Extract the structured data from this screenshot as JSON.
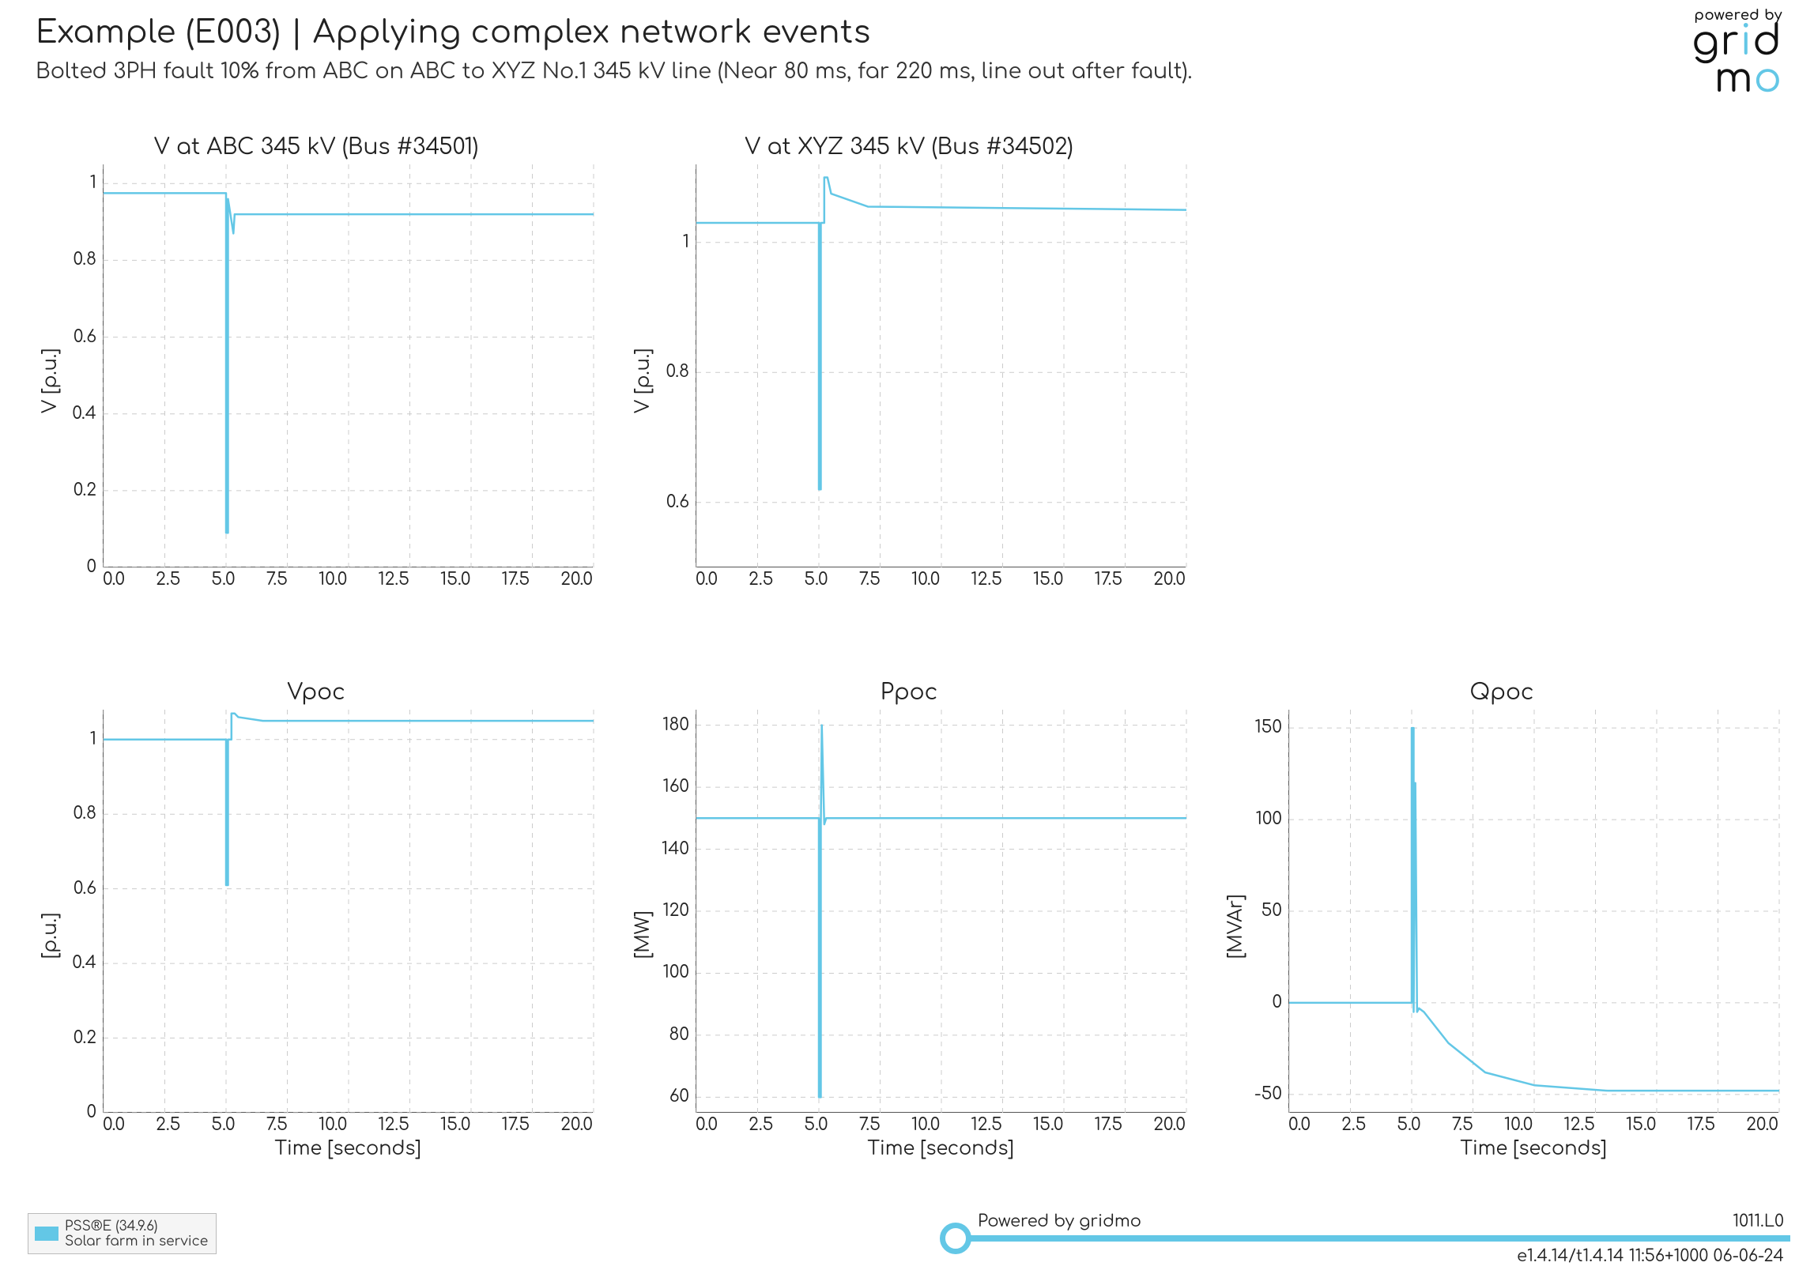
{
  "header": {
    "title": "Example (E003) | Applying complex network events",
    "subtitle": "Bolted 3PH fault 10% from ABC on ABC to XYZ No.1 345 kV line (Near 80 ms, far 220 ms, line out after fault)."
  },
  "logo": {
    "powered_by": "powered by",
    "brand_prefix": "gr",
    "brand_i": "i",
    "brand_mid": "dm",
    "brand_o": "o"
  },
  "global_style": {
    "line_color": "#63c7e6",
    "line_width": 2.5,
    "grid_color": "#cccccc",
    "grid_dash": "6,6",
    "axis_color": "#555555",
    "background_color": "#ffffff",
    "font_color": "#222222",
    "tick_fontsize": 22,
    "title_fontsize": 28,
    "label_fontsize": 24
  },
  "charts": [
    {
      "id": "v_abc",
      "title": "V at ABC 345 kV (Bus #34501)",
      "ylabel": "V [p.u.]",
      "xlabel": "",
      "xlim": [
        0,
        20
      ],
      "xticks": [
        0.0,
        2.5,
        5.0,
        7.5,
        10.0,
        12.5,
        15.0,
        17.5,
        20.0
      ],
      "ylim": [
        0.0,
        1.05
      ],
      "yticks": [
        0.0,
        0.2,
        0.4,
        0.6,
        0.8,
        1.0
      ],
      "show_xlabel": false,
      "series": [
        {
          "x": [
            0,
            4.95,
            5.0,
            5.0,
            5.08,
            5.08,
            5.3,
            5.35,
            6.0,
            20.0
          ],
          "y": [
            0.975,
            0.975,
            0.975,
            0.09,
            0.09,
            0.96,
            0.87,
            0.92,
            0.92,
            0.92
          ]
        }
      ]
    },
    {
      "id": "v_xyz",
      "title": "V at XYZ 345 kV (Bus #34502)",
      "ylabel": "V [p.u.]",
      "xlabel": "",
      "xlim": [
        0,
        20
      ],
      "xticks": [
        0.0,
        2.5,
        5.0,
        7.5,
        10.0,
        12.5,
        15.0,
        17.5,
        20.0
      ],
      "ylim": [
        0.5,
        1.12
      ],
      "yticks": [
        0.6,
        0.8,
        1.0
      ],
      "show_xlabel": false,
      "series": [
        {
          "x": [
            0,
            4.95,
            5.0,
            5.0,
            5.08,
            5.08,
            5.22,
            5.22,
            5.35,
            5.5,
            7.0,
            20.0
          ],
          "y": [
            1.03,
            1.03,
            1.03,
            0.62,
            0.62,
            1.03,
            1.03,
            1.1,
            1.1,
            1.075,
            1.055,
            1.05
          ]
        }
      ]
    },
    {
      "id": "empty",
      "empty": true
    },
    {
      "id": "vpoc",
      "title": "Vpoc",
      "ylabel": "[p.u.]",
      "xlabel": "Time [seconds]",
      "xlim": [
        0,
        20
      ],
      "xticks": [
        0.0,
        2.5,
        5.0,
        7.5,
        10.0,
        12.5,
        15.0,
        17.5,
        20.0
      ],
      "ylim": [
        0.0,
        1.08
      ],
      "yticks": [
        0.0,
        0.2,
        0.4,
        0.6,
        0.8,
        1.0
      ],
      "show_xlabel": true,
      "series": [
        {
          "x": [
            0,
            4.95,
            5.0,
            5.0,
            5.08,
            5.08,
            5.22,
            5.22,
            5.35,
            5.5,
            6.5,
            20.0
          ],
          "y": [
            1.0,
            1.0,
            1.0,
            0.61,
            0.61,
            1.0,
            1.0,
            1.07,
            1.07,
            1.06,
            1.05,
            1.05
          ]
        }
      ]
    },
    {
      "id": "ppoc",
      "title": "Ppoc",
      "ylabel": "[MW]",
      "xlabel": "Time [seconds]",
      "xlim": [
        0,
        20
      ],
      "xticks": [
        0.0,
        2.5,
        5.0,
        7.5,
        10.0,
        12.5,
        15.0,
        17.5,
        20.0
      ],
      "ylim": [
        55,
        185
      ],
      "yticks": [
        60,
        80,
        100,
        120,
        140,
        160,
        180
      ],
      "show_xlabel": true,
      "series": [
        {
          "x": [
            0,
            4.95,
            5.0,
            5.0,
            5.08,
            5.08,
            5.12,
            5.22,
            5.3,
            5.5,
            20.0
          ],
          "y": [
            150,
            150,
            150,
            60,
            60,
            148,
            180,
            148,
            150,
            150,
            150
          ]
        }
      ]
    },
    {
      "id": "qpoc",
      "title": "Qpoc",
      "ylabel": "[MVAr]",
      "xlabel": "Time [seconds]",
      "xlim": [
        0,
        20
      ],
      "xticks": [
        0.0,
        2.5,
        5.0,
        7.5,
        10.0,
        12.5,
        15.0,
        17.5,
        20.0
      ],
      "ylim": [
        -60,
        160
      ],
      "yticks": [
        -50,
        0,
        50,
        100,
        150
      ],
      "show_xlabel": true,
      "series": [
        {
          "x": [
            0,
            4.95,
            5.0,
            5.0,
            5.08,
            5.08,
            5.15,
            5.22,
            5.3,
            5.5,
            6.5,
            8.0,
            10.0,
            13.0,
            20.0
          ],
          "y": [
            0,
            0,
            0,
            150,
            150,
            -5,
            120,
            -5,
            -3,
            -5,
            -22,
            -38,
            -45,
            -48,
            -48
          ]
        }
      ]
    }
  ],
  "legend": {
    "line1": "PSS®E (34.9.6)",
    "line2": "Solar farm in service"
  },
  "footer": {
    "left": "Powered by gridmo",
    "right_top": "1011.L0",
    "right_bottom": "e1.4.14/t1.4.14 11:56+1000 06-06-24"
  }
}
